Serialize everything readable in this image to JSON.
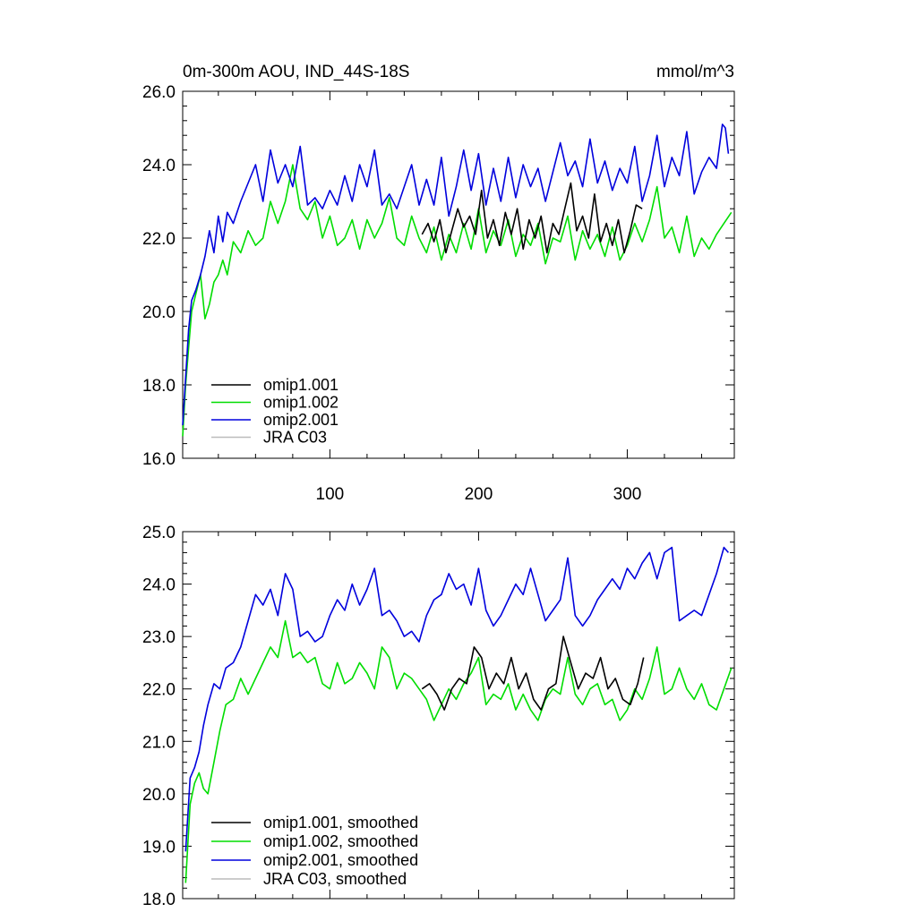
{
  "chart_data": [
    {
      "type": "line",
      "title": "0m-300m AOU, IND_44S-18S",
      "units": "mmol/m^3",
      "xlim": [
        1,
        372
      ],
      "ylim": [
        16.0,
        26.0
      ],
      "yticks": [
        "16.0",
        "18.0",
        "20.0",
        "22.0",
        "24.0",
        "26.0"
      ],
      "ytick_values": [
        16,
        18,
        20,
        22,
        24,
        26
      ],
      "xticks": [
        "100",
        "200",
        "300"
      ],
      "xtick_values": [
        100,
        200,
        300
      ],
      "legend_position": "bottom-left",
      "series": [
        {
          "name": "omip1.001",
          "color": "#000000",
          "x": [
            162,
            166,
            170,
            174,
            178,
            182,
            186,
            190,
            194,
            198,
            202,
            206,
            210,
            214,
            218,
            222,
            226,
            230,
            234,
            238,
            242,
            246,
            250,
            254,
            258,
            262,
            266,
            270,
            274,
            278,
            282,
            286,
            290,
            294,
            298,
            302,
            306,
            310
          ],
          "y": [
            22.1,
            22.4,
            21.9,
            22.5,
            21.6,
            22.2,
            22.8,
            22.3,
            22.6,
            22.1,
            23.3,
            22.0,
            22.5,
            21.8,
            22.7,
            22.1,
            22.8,
            21.7,
            22.5,
            22.0,
            22.6,
            21.6,
            22.4,
            22.1,
            22.8,
            23.5,
            22.2,
            22.6,
            22.0,
            23.2,
            21.9,
            22.4,
            21.8,
            22.5,
            21.6,
            22.2,
            22.9,
            22.8
          ]
        },
        {
          "name": "omip1.002",
          "color": "#00dd00",
          "x": [
            1,
            3,
            5,
            7,
            10,
            13,
            16,
            19,
            22,
            25,
            28,
            31,
            35,
            40,
            45,
            50,
            55,
            60,
            65,
            70,
            75,
            80,
            85,
            90,
            95,
            100,
            105,
            110,
            115,
            120,
            125,
            130,
            135,
            140,
            145,
            150,
            155,
            160,
            165,
            170,
            175,
            180,
            185,
            190,
            195,
            200,
            205,
            210,
            215,
            220,
            225,
            230,
            235,
            240,
            245,
            250,
            255,
            260,
            265,
            270,
            275,
            280,
            285,
            290,
            295,
            300,
            305,
            310,
            315,
            320,
            325,
            330,
            335,
            340,
            345,
            350,
            355,
            360,
            365,
            370
          ],
          "y": [
            16.6,
            18.0,
            19.0,
            20.0,
            20.5,
            21.0,
            19.8,
            20.2,
            20.8,
            21.0,
            21.4,
            21.0,
            21.9,
            21.6,
            22.2,
            21.8,
            22.0,
            23.0,
            22.4,
            23.0,
            24.0,
            22.8,
            22.5,
            23.0,
            22.0,
            22.6,
            21.8,
            22.0,
            22.5,
            21.7,
            22.5,
            22.0,
            22.4,
            23.1,
            22.0,
            21.8,
            22.6,
            22.0,
            21.6,
            22.3,
            21.4,
            22.1,
            21.6,
            22.4,
            21.7,
            22.8,
            21.6,
            22.2,
            21.8,
            22.5,
            21.5,
            22.1,
            21.8,
            22.4,
            21.3,
            22.0,
            21.9,
            22.6,
            21.4,
            22.2,
            21.7,
            22.1,
            21.5,
            22.3,
            21.4,
            21.8,
            22.4,
            21.9,
            22.5,
            23.4,
            22.0,
            22.3,
            21.6,
            22.6,
            21.5,
            22.0,
            21.7,
            22.1,
            22.4,
            22.7
          ]
        },
        {
          "name": "omip2.001",
          "color": "#0000dd",
          "x": [
            1,
            3,
            5,
            7,
            10,
            13,
            16,
            19,
            22,
            25,
            28,
            31,
            35,
            40,
            45,
            50,
            55,
            60,
            65,
            70,
            75,
            80,
            85,
            90,
            95,
            100,
            105,
            110,
            115,
            120,
            125,
            130,
            135,
            140,
            145,
            150,
            155,
            160,
            165,
            170,
            175,
            180,
            185,
            190,
            195,
            200,
            205,
            210,
            215,
            220,
            225,
            230,
            235,
            240,
            245,
            250,
            255,
            260,
            265,
            270,
            275,
            280,
            285,
            290,
            295,
            300,
            305,
            310,
            315,
            320,
            325,
            330,
            335,
            340,
            345,
            350,
            355,
            360,
            364,
            366,
            368
          ],
          "y": [
            16.9,
            18.2,
            19.5,
            20.3,
            20.6,
            21.0,
            21.5,
            22.2,
            21.6,
            22.6,
            21.9,
            22.7,
            22.4,
            23.0,
            23.5,
            24.0,
            23.0,
            24.4,
            23.5,
            24.0,
            23.4,
            24.5,
            22.9,
            23.1,
            22.8,
            23.3,
            22.9,
            23.7,
            23.0,
            24.0,
            23.4,
            24.4,
            22.9,
            23.2,
            22.8,
            23.4,
            24.0,
            22.9,
            23.6,
            22.9,
            24.2,
            22.6,
            23.4,
            24.4,
            23.3,
            24.3,
            22.9,
            23.9,
            23.0,
            24.2,
            23.1,
            24.0,
            23.4,
            23.9,
            23.0,
            23.8,
            24.6,
            23.7,
            24.1,
            23.4,
            24.7,
            23.5,
            24.1,
            23.3,
            23.9,
            23.5,
            24.5,
            23.0,
            23.7,
            24.8,
            23.4,
            24.2,
            23.7,
            24.9,
            23.2,
            23.8,
            24.2,
            23.9,
            25.1,
            25.0,
            24.3
          ]
        },
        {
          "name": "JRA C03",
          "color": "#bbbbbb",
          "x": [],
          "y": []
        }
      ]
    },
    {
      "type": "line",
      "title": "",
      "xlim": [
        1,
        372
      ],
      "ylim": [
        18.0,
        25.0
      ],
      "yticks": [
        "18.0",
        "19.0",
        "20.0",
        "21.0",
        "22.0",
        "23.0",
        "24.0",
        "25.0"
      ],
      "ytick_values": [
        18,
        19,
        20,
        21,
        22,
        23,
        24,
        25
      ],
      "xtick_values": [
        100,
        200,
        300
      ],
      "legend_position": "bottom-left",
      "series": [
        {
          "name": "omip1.001, smoothed",
          "color": "#000000",
          "x": [
            162,
            167,
            172,
            177,
            182,
            187,
            192,
            197,
            202,
            207,
            212,
            217,
            222,
            227,
            232,
            237,
            242,
            247,
            252,
            257,
            262,
            267,
            272,
            277,
            282,
            287,
            292,
            297,
            302,
            307,
            311
          ],
          "y": [
            22.0,
            22.1,
            21.9,
            21.6,
            22.0,
            22.2,
            22.1,
            22.8,
            22.6,
            22.0,
            22.3,
            22.1,
            22.6,
            22.0,
            22.3,
            21.8,
            21.6,
            22.0,
            22.1,
            23.0,
            22.5,
            22.0,
            22.3,
            22.2,
            22.6,
            22.0,
            22.2,
            21.8,
            21.7,
            22.1,
            22.6
          ]
        },
        {
          "name": "omip1.002, smoothed",
          "color": "#00dd00",
          "x": [
            3,
            6,
            9,
            12,
            15,
            18,
            22,
            26,
            30,
            35,
            40,
            45,
            50,
            55,
            60,
            65,
            70,
            75,
            80,
            85,
            90,
            95,
            100,
            105,
            110,
            115,
            120,
            125,
            130,
            135,
            140,
            145,
            150,
            155,
            160,
            165,
            170,
            175,
            180,
            185,
            190,
            195,
            200,
            205,
            210,
            215,
            220,
            225,
            230,
            235,
            240,
            245,
            250,
            255,
            260,
            265,
            270,
            275,
            280,
            285,
            290,
            295,
            300,
            305,
            310,
            315,
            320,
            325,
            330,
            335,
            340,
            345,
            350,
            355,
            360,
            365,
            370
          ],
          "y": [
            18.3,
            19.8,
            20.2,
            20.4,
            20.1,
            20.0,
            20.6,
            21.2,
            21.7,
            21.8,
            22.2,
            21.9,
            22.2,
            22.5,
            22.8,
            22.6,
            23.3,
            22.6,
            22.7,
            22.5,
            22.6,
            22.1,
            22.0,
            22.5,
            22.1,
            22.2,
            22.5,
            22.3,
            22.0,
            22.8,
            22.6,
            22.0,
            22.3,
            22.2,
            22.0,
            21.8,
            21.4,
            21.7,
            22.0,
            21.8,
            22.1,
            22.3,
            22.6,
            21.7,
            21.9,
            21.8,
            22.1,
            21.6,
            21.9,
            21.6,
            21.4,
            21.8,
            22.0,
            21.9,
            22.6,
            21.9,
            21.7,
            22.0,
            22.1,
            21.7,
            21.8,
            21.4,
            21.6,
            22.0,
            21.8,
            22.2,
            22.8,
            21.9,
            22.0,
            22.4,
            22.0,
            21.8,
            22.1,
            21.7,
            21.6,
            22.0,
            22.4
          ]
        },
        {
          "name": "omip2.001, smoothed",
          "color": "#0000dd",
          "x": [
            3,
            6,
            9,
            12,
            15,
            18,
            22,
            26,
            30,
            35,
            40,
            45,
            50,
            55,
            60,
            65,
            70,
            75,
            80,
            85,
            90,
            95,
            100,
            105,
            110,
            115,
            120,
            125,
            130,
            135,
            140,
            145,
            150,
            155,
            160,
            165,
            170,
            175,
            180,
            185,
            190,
            195,
            200,
            205,
            210,
            215,
            220,
            225,
            230,
            235,
            240,
            245,
            250,
            255,
            260,
            265,
            270,
            275,
            280,
            285,
            290,
            295,
            300,
            305,
            310,
            315,
            320,
            325,
            330,
            335,
            340,
            345,
            350,
            355,
            360,
            365,
            368
          ],
          "y": [
            18.9,
            20.3,
            20.5,
            20.8,
            21.3,
            21.7,
            22.1,
            22.0,
            22.4,
            22.5,
            22.8,
            23.3,
            23.8,
            23.6,
            23.9,
            23.4,
            24.2,
            23.9,
            23.0,
            23.1,
            22.9,
            23.0,
            23.4,
            23.7,
            23.5,
            24.0,
            23.6,
            23.9,
            24.3,
            23.4,
            23.5,
            23.3,
            23.0,
            23.1,
            22.9,
            23.4,
            23.7,
            23.8,
            24.2,
            23.9,
            24.0,
            23.6,
            24.3,
            23.5,
            23.2,
            23.4,
            23.7,
            24.0,
            23.8,
            24.3,
            23.8,
            23.3,
            23.5,
            23.7,
            24.5,
            23.4,
            23.2,
            23.4,
            23.7,
            23.9,
            24.1,
            23.9,
            24.3,
            24.1,
            24.4,
            24.6,
            24.1,
            24.6,
            24.7,
            23.3,
            23.4,
            23.5,
            23.4,
            23.8,
            24.2,
            24.7,
            24.6
          ]
        },
        {
          "name": "JRA C03, smoothed",
          "color": "#bbbbbb",
          "x": [],
          "y": []
        }
      ]
    }
  ]
}
